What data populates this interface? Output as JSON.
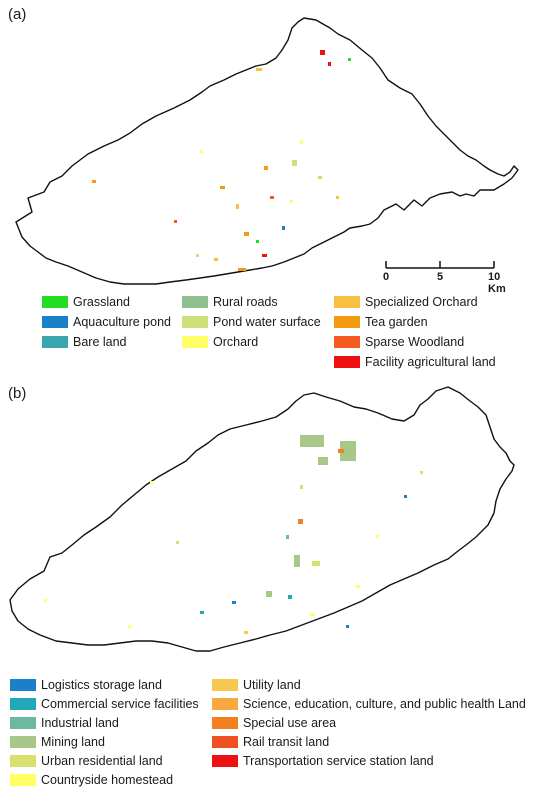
{
  "panel_a": {
    "label": "(a)",
    "scale": {
      "ticks": [
        "0",
        "5",
        "10 Km"
      ]
    },
    "legend": [
      {
        "label": "Grassland",
        "color": "#22dd22"
      },
      {
        "label": "Aquaculture pond",
        "color": "#1a80c8"
      },
      {
        "label": "Bare land",
        "color": "#3aa6b0"
      },
      {
        "label": "Rural roads",
        "color": "#8fbf8f"
      },
      {
        "label": "Pond water surface",
        "color": "#cfe07a"
      },
      {
        "label": "Orchard",
        "color": "#ffff66"
      },
      {
        "label": "Specialized Orchard",
        "color": "#f7c040"
      },
      {
        "label": "Tea garden",
        "color": "#f39a10"
      },
      {
        "label": "Sparse Woodland",
        "color": "#f55a1e"
      },
      {
        "label": "Facility agricultural land",
        "color": "#ee1111"
      }
    ]
  },
  "panel_b": {
    "label": "(b)",
    "legend": [
      {
        "label": "Logistics storage land",
        "color": "#1a80c8"
      },
      {
        "label": "Commercial service facilities",
        "color": "#22a8b8"
      },
      {
        "label": "Industrial land",
        "color": "#6fb8a0"
      },
      {
        "label": "Mining land",
        "color": "#a8c88a"
      },
      {
        "label": "Urban residential land",
        "color": "#d8e070"
      },
      {
        "label": "Countryside homestead",
        "color": "#ffff66"
      },
      {
        "label": "Utility land",
        "color": "#f7c850"
      },
      {
        "label": "Science, education, culture, and public health Land",
        "color": "#f7a840"
      },
      {
        "label": "Special use area",
        "color": "#f38020"
      },
      {
        "label": "Rail transit land",
        "color": "#f05020"
      },
      {
        "label": "Transportation service station land",
        "color": "#ee1111"
      }
    ]
  }
}
